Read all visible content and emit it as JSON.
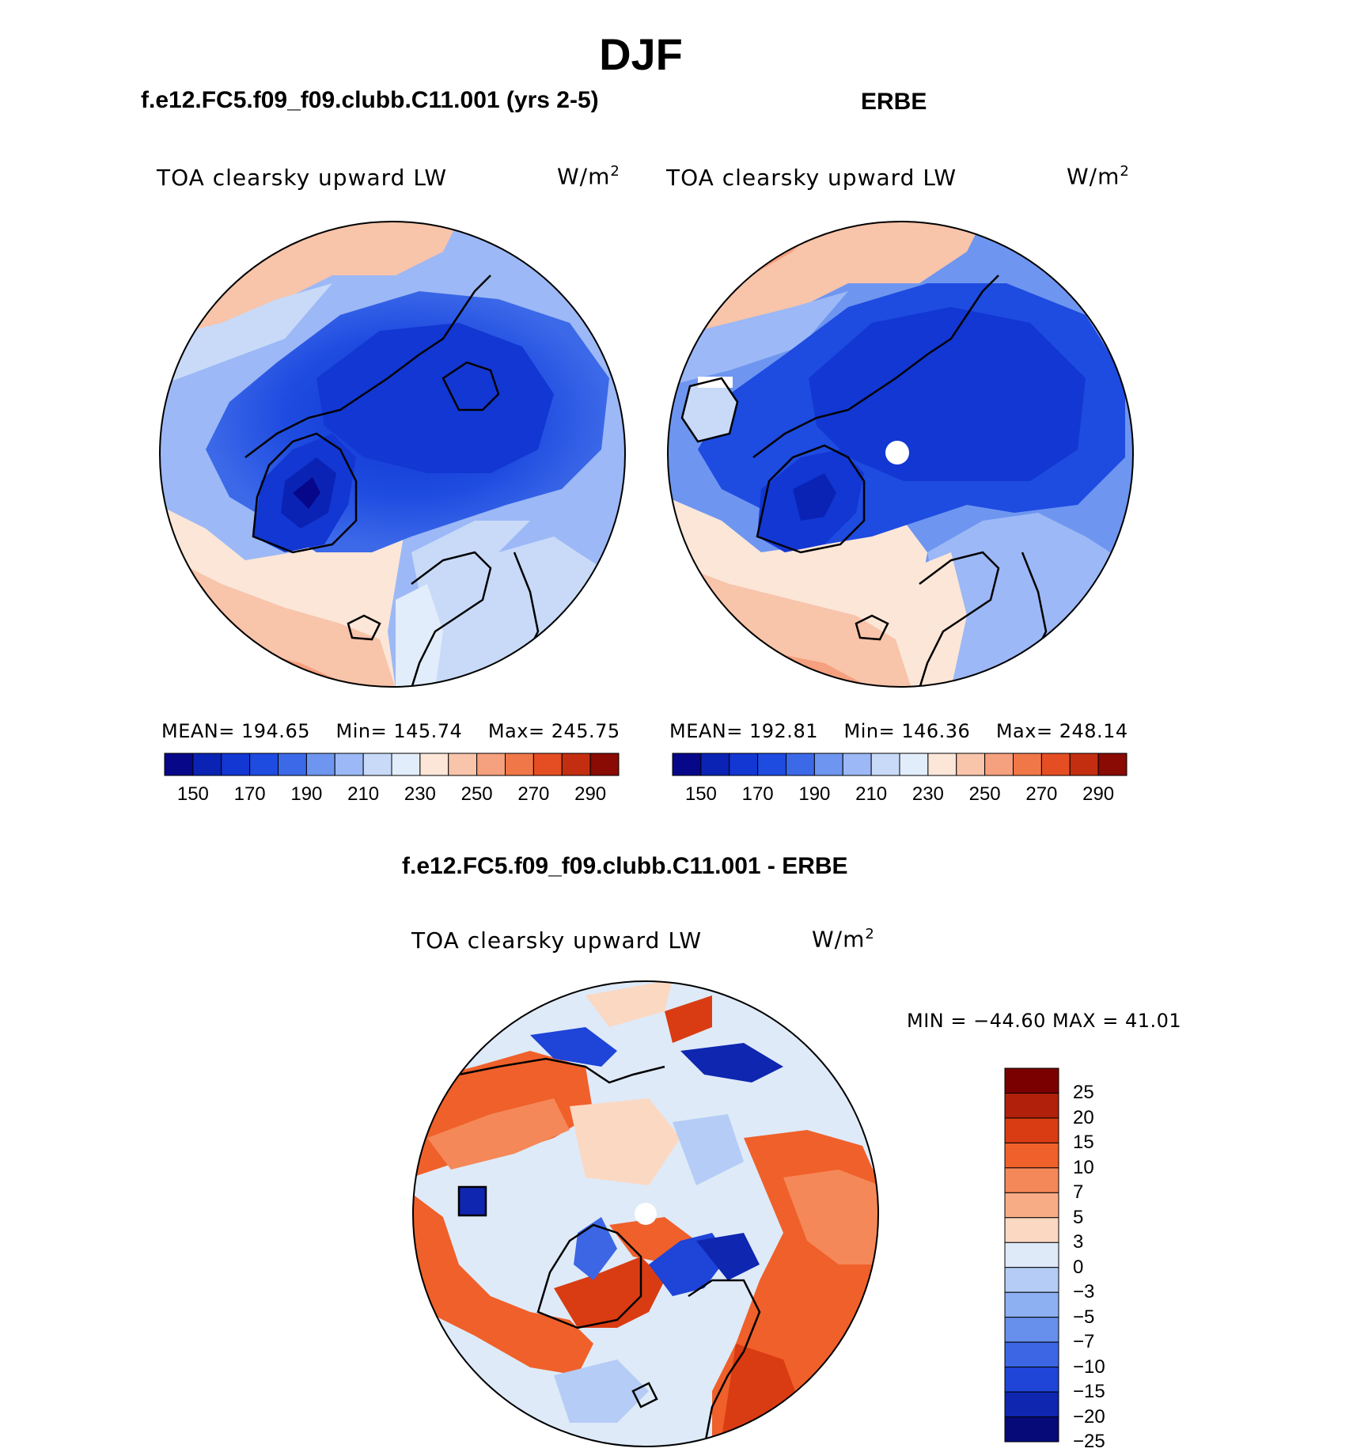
{
  "figure": {
    "title": "DJF",
    "left_panel_title": "f.e12.FC5.f09_f09.clubb.C11.001 (yrs 2-5)",
    "right_panel_title": "ERBE",
    "diff_panel_title": "f.e12.FC5.f09_f09.clubb.C11.001 - ERBE"
  },
  "panels": {
    "model": {
      "variable": "TOA clearsky upward LW",
      "units_base": "W/m",
      "units_exp": "2",
      "mean_label": "MEAN=",
      "mean": "194.65",
      "min_label": "Min=",
      "min": "145.74",
      "max_label": "Max=",
      "max": "245.75"
    },
    "obs": {
      "variable": "TOA clearsky upward LW",
      "units_base": "W/m",
      "units_exp": "2",
      "mean_label": "MEAN=",
      "mean": "192.81",
      "min_label": "Min=",
      "min": "146.36",
      "max_label": "Max=",
      "max": "248.14"
    },
    "diff": {
      "variable": "TOA clearsky upward LW",
      "units_base": "W/m",
      "units_exp": "2",
      "minmax_text": "MIN = −44.60 MAX =  41.01"
    }
  },
  "chart_data": [
    {
      "type": "heatmap",
      "projection": "north polar stereographic",
      "title": "TOA clearsky upward LW",
      "case": "f.e12.FC5.f09_f09.clubb.C11.001 (yrs 2-5)",
      "units": "W/m2",
      "mean": 194.65,
      "min": 145.74,
      "max": 245.75,
      "colorbar_levels": [
        150,
        160,
        170,
        180,
        190,
        200,
        210,
        220,
        230,
        240,
        250,
        260,
        270,
        280,
        290
      ],
      "colorbar_labels": [
        "150",
        "170",
        "190",
        "210",
        "230",
        "250",
        "270",
        "290"
      ],
      "colors": [
        "#07078a",
        "#0a23b4",
        "#1237d2",
        "#1e4be0",
        "#3c69e8",
        "#6e96f0",
        "#9cb8f6",
        "#c8daf8",
        "#e2edfb",
        "#fbe6d8",
        "#f8c4aa",
        "#f5a07e",
        "#f07848",
        "#e54e22",
        "#c42e10",
        "#8a0a04"
      ]
    },
    {
      "type": "heatmap",
      "projection": "north polar stereographic",
      "title": "TOA clearsky upward LW",
      "case": "ERBE",
      "units": "W/m2",
      "mean": 192.81,
      "min": 146.36,
      "max": 248.14,
      "colorbar_levels": [
        150,
        160,
        170,
        180,
        190,
        200,
        210,
        220,
        230,
        240,
        250,
        260,
        270,
        280,
        290
      ],
      "colorbar_labels": [
        "150",
        "170",
        "190",
        "210",
        "230",
        "250",
        "270",
        "290"
      ],
      "colors": [
        "#07078a",
        "#0a23b4",
        "#1237d2",
        "#1e4be0",
        "#3c69e8",
        "#6e96f0",
        "#9cb8f6",
        "#c8daf8",
        "#e2edfb",
        "#fbe6d8",
        "#f8c4aa",
        "#f5a07e",
        "#f07848",
        "#e54e22",
        "#c42e10",
        "#8a0a04"
      ]
    },
    {
      "type": "heatmap",
      "projection": "north polar stereographic",
      "title": "TOA clearsky upward LW",
      "case": "f.e12.FC5.f09_f09.clubb.C11.001 - ERBE",
      "units": "W/m2",
      "min": -44.6,
      "max": 41.01,
      "colorbar_labels_top_to_bottom": [
        "25",
        "20",
        "15",
        "10",
        "7",
        "5",
        "3",
        "0",
        "−3",
        "−5",
        "−7",
        "−10",
        "−15",
        "−20",
        "−25"
      ],
      "colors_top_to_bottom": [
        "#7a0000",
        "#b0200a",
        "#d93c12",
        "#f0602a",
        "#f58858",
        "#f8ac86",
        "#fbd8c2",
        "#deeaf8",
        "#b4ccf6",
        "#8cb0f2",
        "#6690ec",
        "#3c66e4",
        "#1e44d8",
        "#0e26b0",
        "#060a78"
      ]
    }
  ]
}
